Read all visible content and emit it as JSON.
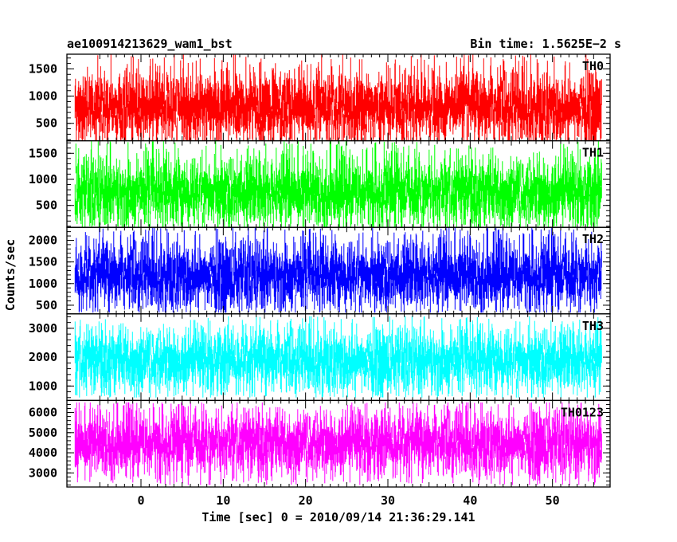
{
  "header": {
    "title": "ae100914213629_wam1_bst",
    "bin_time": "Bin time: 1.5625E−2 s"
  },
  "chart_data": {
    "type": "line",
    "xlabel": "Time [sec] 0 = 2010/09/14 21:36:29.141",
    "ylabel": "Counts/sec",
    "xlim": [
      -9,
      57
    ],
    "x_ticks": [
      {
        "value": 0,
        "label": "0"
      },
      {
        "value": 10,
        "label": "10"
      },
      {
        "value": 20,
        "label": "20"
      },
      {
        "value": 30,
        "label": "30"
      },
      {
        "value": 40,
        "label": "40"
      },
      {
        "value": 50,
        "label": "50"
      }
    ],
    "x_data_range": [
      -8,
      56
    ],
    "panels": [
      {
        "name": "TH0",
        "color": "#ff0000",
        "ylim": [
          180,
          1770
        ],
        "y_ticks": [
          {
            "value": 500,
            "label": "500"
          },
          {
            "value": 1000,
            "label": "1000"
          },
          {
            "value": 1500,
            "label": "1500"
          }
        ],
        "mean": 800,
        "typical_range": [
          200,
          1500
        ],
        "extreme_range": [
          90,
          1800
        ]
      },
      {
        "name": "TH1",
        "color": "#00ff00",
        "ylim": [
          80,
          1740
        ],
        "y_ticks": [
          {
            "value": 500,
            "label": "500"
          },
          {
            "value": 1000,
            "label": "1000"
          },
          {
            "value": 1500,
            "label": "1500"
          }
        ],
        "mean": 760,
        "typical_range": [
          180,
          1500
        ],
        "extreme_range": [
          60,
          1760
        ]
      },
      {
        "name": "TH2",
        "color": "#0000ff",
        "ylim": [
          300,
          2300
        ],
        "y_ticks": [
          {
            "value": 500,
            "label": "500"
          },
          {
            "value": 1000,
            "label": "1000"
          },
          {
            "value": 1500,
            "label": "1500"
          },
          {
            "value": 2000,
            "label": "2000"
          }
        ],
        "mean": 1200,
        "typical_range": [
          480,
          2050
        ],
        "extreme_range": [
          330,
          2290
        ]
      },
      {
        "name": "TH3",
        "color": "#00ffff",
        "ylim": [
          500,
          3500
        ],
        "y_ticks": [
          {
            "value": 1000,
            "label": "1000"
          },
          {
            "value": 2000,
            "label": "2000"
          },
          {
            "value": 3000,
            "label": "3000"
          }
        ],
        "mean": 1900,
        "typical_range": [
          800,
          3000
        ],
        "extreme_range": [
          600,
          3420
        ]
      },
      {
        "name": "TH0123",
        "color": "#ff00ff",
        "ylim": [
          2300,
          6600
        ],
        "y_ticks": [
          {
            "value": 3000,
            "label": "3000"
          },
          {
            "value": 4000,
            "label": "4000"
          },
          {
            "value": 5000,
            "label": "5000"
          },
          {
            "value": 6000,
            "label": "6000"
          }
        ],
        "mean": 4500,
        "typical_range": [
          2900,
          6100
        ],
        "extreme_range": [
          2400,
          6500
        ]
      }
    ]
  }
}
